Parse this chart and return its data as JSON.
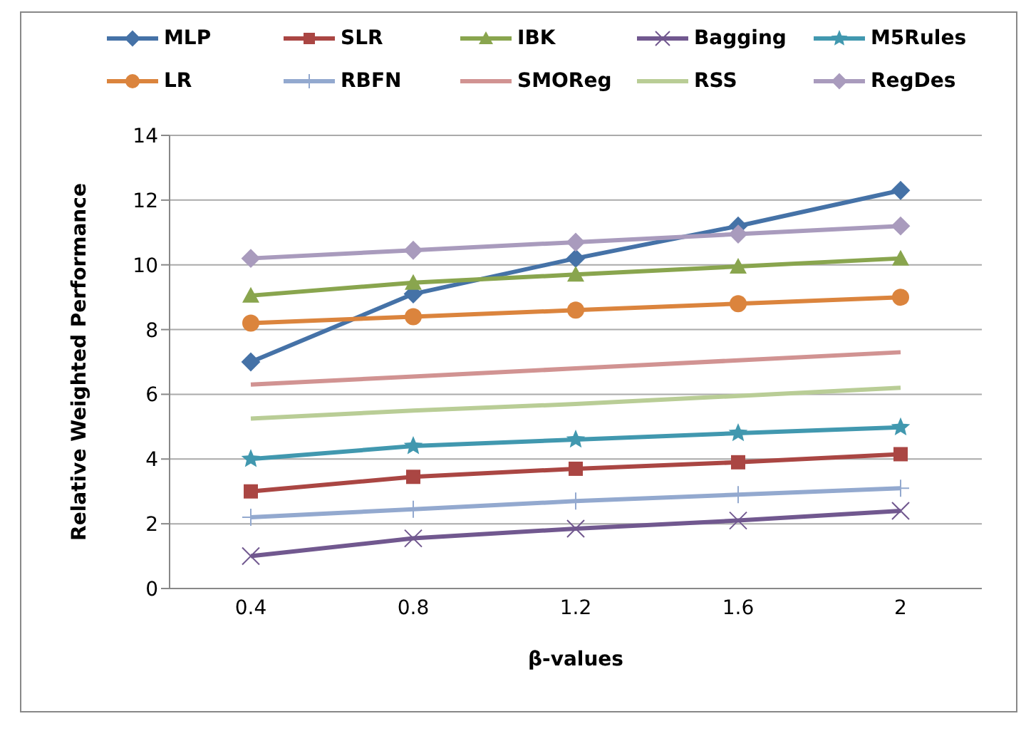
{
  "chart_data": {
    "type": "line",
    "xlabel": "β-values",
    "ylabel": "Relative Weighted Performance",
    "categories": [
      "0.4",
      "0.8",
      "1.2",
      "1.6",
      "2"
    ],
    "ylim": [
      0,
      14
    ],
    "yticks": [
      0,
      2,
      4,
      6,
      8,
      10,
      12,
      14
    ],
    "grid": "y",
    "legend": "top",
    "series": [
      {
        "name": "MLP",
        "color": "#4572a7",
        "marker": "diamond",
        "values": [
          7,
          9.1,
          10.2,
          11.2,
          12.3
        ]
      },
      {
        "name": "SLR",
        "color": "#aa4643",
        "marker": "square",
        "values": [
          3,
          3.45,
          3.7,
          3.9,
          4.15
        ]
      },
      {
        "name": "IBK",
        "color": "#89a54e",
        "marker": "triangle",
        "values": [
          9.05,
          9.45,
          9.7,
          9.95,
          10.2
        ]
      },
      {
        "name": "Bagging",
        "color": "#71588f",
        "marker": "x",
        "values": [
          1,
          1.55,
          1.85,
          2.1,
          2.4
        ]
      },
      {
        "name": "M5Rules",
        "color": "#4198af",
        "marker": "star",
        "values": [
          4,
          4.4,
          4.6,
          4.8,
          4.98
        ]
      },
      {
        "name": "LR",
        "color": "#db843d",
        "marker": "circle",
        "values": [
          8.2,
          8.4,
          8.6,
          8.8,
          9
        ]
      },
      {
        "name": "RBFN",
        "color": "#93a9cf",
        "marker": "cross",
        "values": [
          2.2,
          2.45,
          2.7,
          2.9,
          3.1
        ]
      },
      {
        "name": "SMOReg",
        "color": "#d19392",
        "marker": "none",
        "values": [
          6.3,
          6.55,
          6.8,
          7.05,
          7.3
        ]
      },
      {
        "name": "RSS",
        "color": "#b9cd96",
        "marker": "none",
        "values": [
          5.25,
          5.5,
          5.7,
          5.95,
          6.2
        ]
      },
      {
        "name": "RegDes",
        "color": "#a99bbd",
        "marker": "diamond",
        "values": [
          10.2,
          10.45,
          10.7,
          10.95,
          11.2
        ]
      }
    ]
  }
}
